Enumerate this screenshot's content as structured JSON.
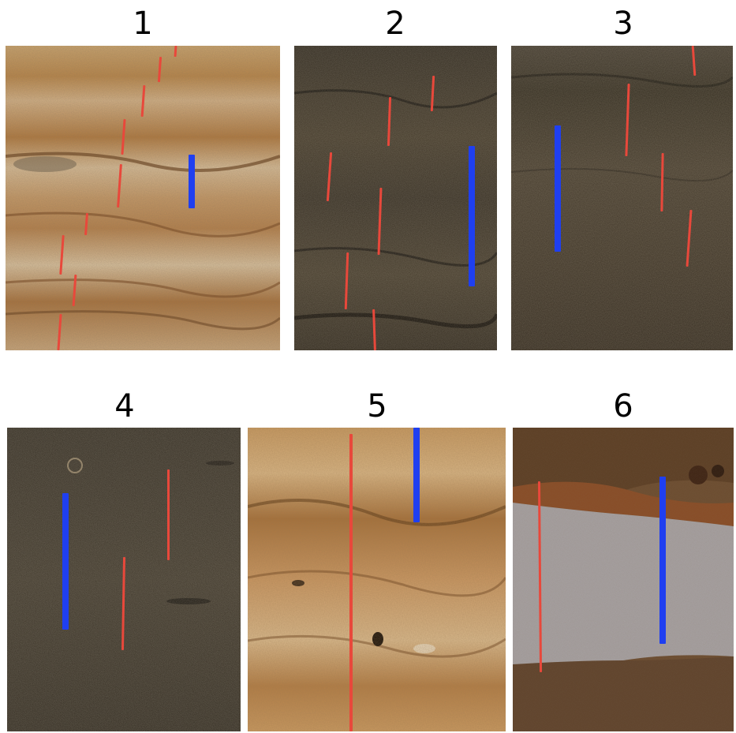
{
  "panels": [
    {
      "label": "1"
    },
    {
      "label": "2"
    },
    {
      "label": "3"
    },
    {
      "label": "4"
    },
    {
      "label": "5"
    },
    {
      "label": "6"
    }
  ],
  "colors": {
    "red_marker": "#e8483b",
    "blue_marker": "#1f3ff0",
    "background": "#ffffff"
  }
}
